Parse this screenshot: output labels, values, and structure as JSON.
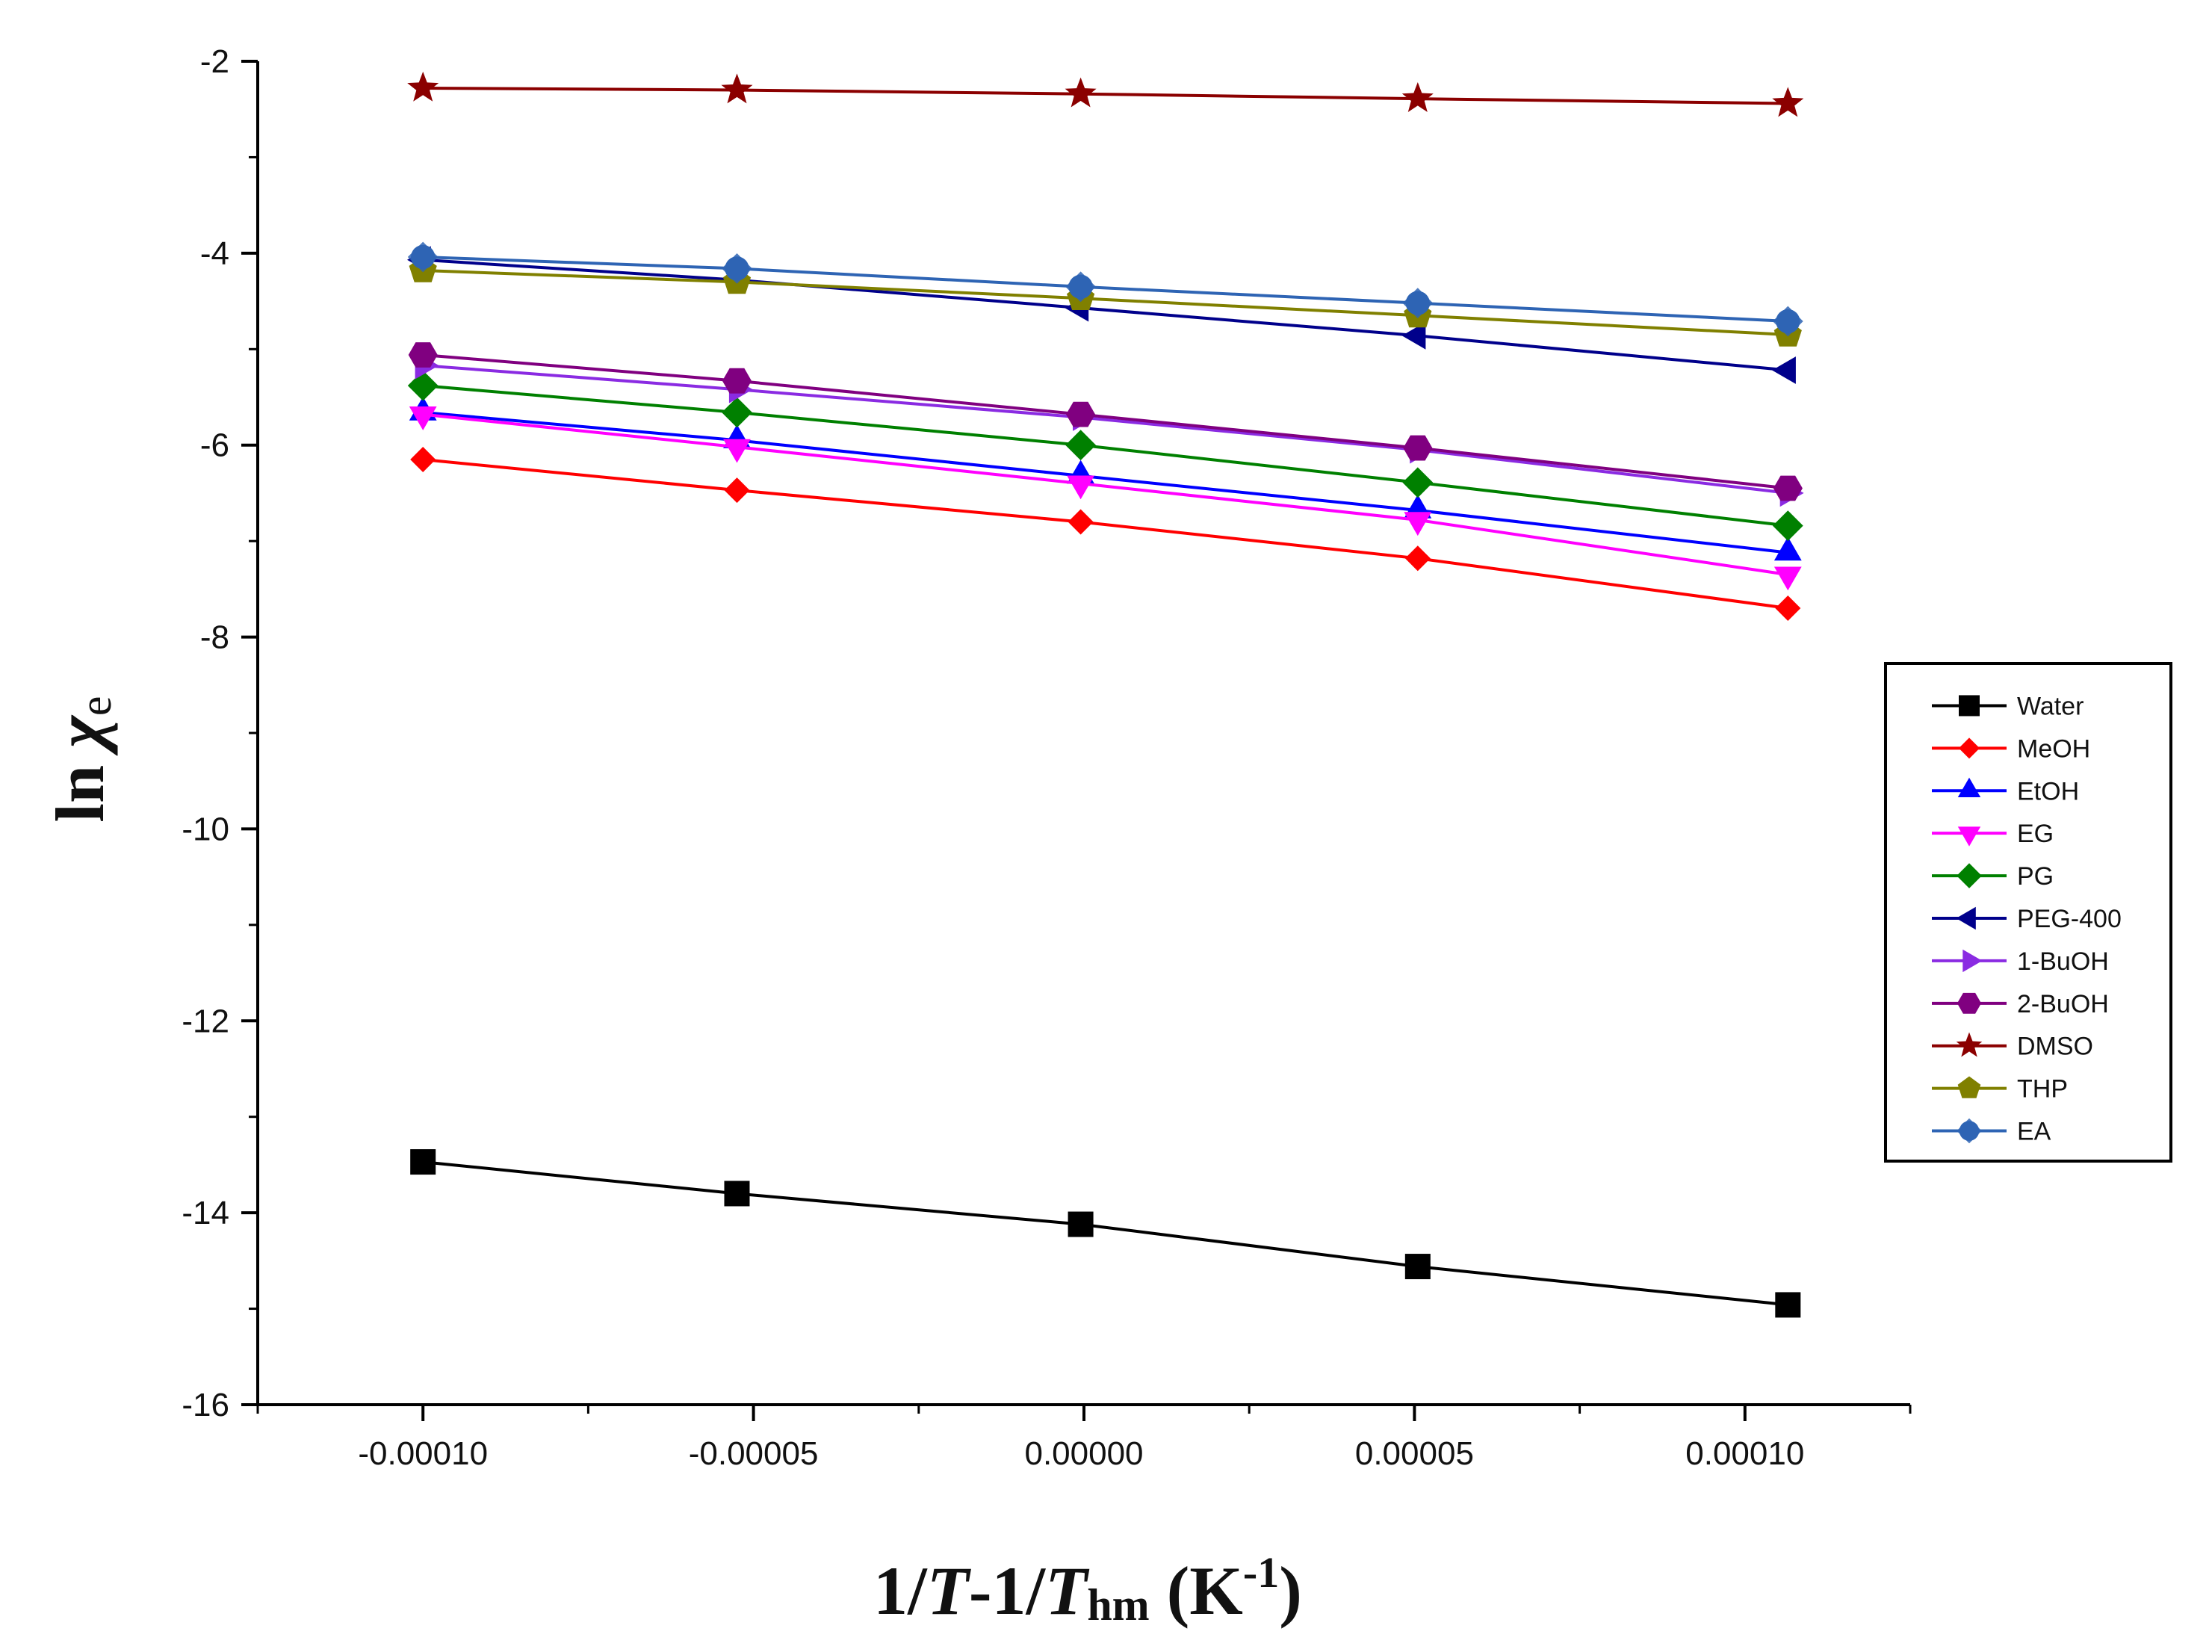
{
  "chart_data": {
    "type": "line",
    "title": "",
    "xlabel": {
      "p1": "1/",
      "p2": "T",
      "p3": "-1/",
      "p4": "T",
      "p5": "hm",
      "p6": " (K",
      "p7": "-1",
      "p8": ")"
    },
    "ylabel": {
      "main": "ln ",
      "chi": "χ",
      "sub": "e"
    },
    "xlim": [
      -0.000125,
      0.000125
    ],
    "ylim": [
      -16,
      -2
    ],
    "x_ticks": [
      -0.0001,
      -5e-05,
      0.0,
      5e-05,
      0.0001
    ],
    "x_tick_labels": [
      "-0.00010",
      "-0.00005",
      "0.00000",
      "0.00005",
      "0.00010"
    ],
    "y_ticks": [
      -16,
      -14,
      -12,
      -10,
      -8,
      -6,
      -4,
      -2
    ],
    "y_tick_labels": [
      "-16",
      "-14",
      "-12",
      "-10",
      "-8",
      "-6",
      "-4",
      "-2"
    ],
    "x": [
      -0.0001,
      -5.25e-05,
      -5e-07,
      5.05e-05,
      0.0001065
    ],
    "legend_position": "right",
    "series": [
      {
        "name": "Water",
        "color": "#000000",
        "marker": "square",
        "values": [
          -13.47,
          -13.8,
          -14.12,
          -14.56,
          -14.96
        ]
      },
      {
        "name": "MeOH",
        "color": "#ff0000",
        "marker": "diamond-small",
        "values": [
          -6.15,
          -6.47,
          -6.8,
          -7.18,
          -7.7
        ]
      },
      {
        "name": "EtOH",
        "color": "#0000ff",
        "marker": "triangle-up",
        "values": [
          -5.66,
          -5.95,
          -6.32,
          -6.68,
          -7.12
        ]
      },
      {
        "name": "EG",
        "color": "#ff00ff",
        "marker": "triangle-down",
        "values": [
          -5.68,
          -6.02,
          -6.4,
          -6.78,
          -7.35
        ]
      },
      {
        "name": "PG",
        "color": "#008000",
        "marker": "diamond",
        "values": [
          -5.38,
          -5.66,
          -6.0,
          -6.39,
          -6.84
        ]
      },
      {
        "name": "PEG-400",
        "color": "#00008b",
        "marker": "triangle-left",
        "values": [
          -4.07,
          -4.28,
          -4.57,
          -4.86,
          -5.22
        ]
      },
      {
        "name": "1-BuOH",
        "color": "#8a2be2",
        "marker": "triangle-right",
        "values": [
          -5.17,
          -5.42,
          -5.71,
          -6.05,
          -6.5
        ]
      },
      {
        "name": "2-BuOH",
        "color": "#800080",
        "marker": "hexagon",
        "values": [
          -5.06,
          -5.33,
          -5.68,
          -6.03,
          -6.45
        ]
      },
      {
        "name": "DMSO",
        "color": "#8b0000",
        "marker": "star",
        "values": [
          -2.28,
          -2.3,
          -2.34,
          -2.39,
          -2.44
        ]
      },
      {
        "name": "THP",
        "color": "#808000",
        "marker": "pentagon",
        "values": [
          -4.18,
          -4.3,
          -4.47,
          -4.65,
          -4.85
        ]
      },
      {
        "name": "EA",
        "color": "#2e64b4",
        "marker": "circle-diamond",
        "values": [
          -4.04,
          -4.16,
          -4.35,
          -4.52,
          -4.71
        ]
      }
    ]
  }
}
